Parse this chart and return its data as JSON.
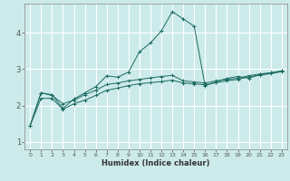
{
  "xlabel": "Humidex (Indice chaleur)",
  "ylabel": "",
  "bg_color": "#cceaea",
  "grid_color": "#ffffff",
  "line_color": "#1a6b60",
  "xlim": [
    -0.5,
    23.5
  ],
  "ylim": [
    0.8,
    4.8
  ],
  "xticks": [
    0,
    1,
    2,
    3,
    4,
    5,
    6,
    7,
    8,
    9,
    10,
    11,
    12,
    13,
    14,
    15,
    16,
    17,
    18,
    19,
    20,
    21,
    22,
    23
  ],
  "yticks": [
    1,
    2,
    3,
    4
  ],
  "series": [
    {
      "x": [
        0,
        1,
        2,
        3,
        4,
        5,
        6,
        7,
        8,
        9,
        10,
        11,
        12,
        13,
        14,
        15,
        16,
        17,
        18,
        19,
        20,
        21,
        22,
        23
      ],
      "y": [
        1.45,
        2.35,
        2.3,
        1.92,
        2.18,
        2.35,
        2.52,
        2.82,
        2.78,
        2.92,
        3.48,
        3.72,
        4.05,
        4.58,
        4.38,
        4.18,
        2.55,
        2.65,
        2.75,
        2.8,
        2.75,
        2.85,
        2.9,
        2.95
      ]
    },
    {
      "x": [
        0,
        1,
        2,
        3,
        4,
        5,
        6,
        7,
        8,
        9,
        10,
        11,
        12,
        13,
        14,
        15,
        16,
        17,
        18,
        19,
        20,
        21,
        22,
        23
      ],
      "y": [
        1.45,
        2.35,
        2.28,
        2.05,
        2.15,
        2.3,
        2.42,
        2.58,
        2.62,
        2.68,
        2.72,
        2.76,
        2.8,
        2.83,
        2.68,
        2.65,
        2.62,
        2.68,
        2.72,
        2.75,
        2.82,
        2.87,
        2.9,
        2.95
      ]
    },
    {
      "x": [
        0,
        1,
        2,
        3,
        4,
        5,
        6,
        7,
        8,
        9,
        10,
        11,
        12,
        13,
        14,
        15,
        16,
        17,
        18,
        19,
        20,
        21,
        22,
        23
      ],
      "y": [
        1.45,
        2.2,
        2.2,
        1.9,
        2.05,
        2.15,
        2.28,
        2.42,
        2.48,
        2.55,
        2.6,
        2.63,
        2.66,
        2.7,
        2.62,
        2.6,
        2.57,
        2.63,
        2.68,
        2.72,
        2.8,
        2.83,
        2.88,
        2.93
      ]
    }
  ]
}
